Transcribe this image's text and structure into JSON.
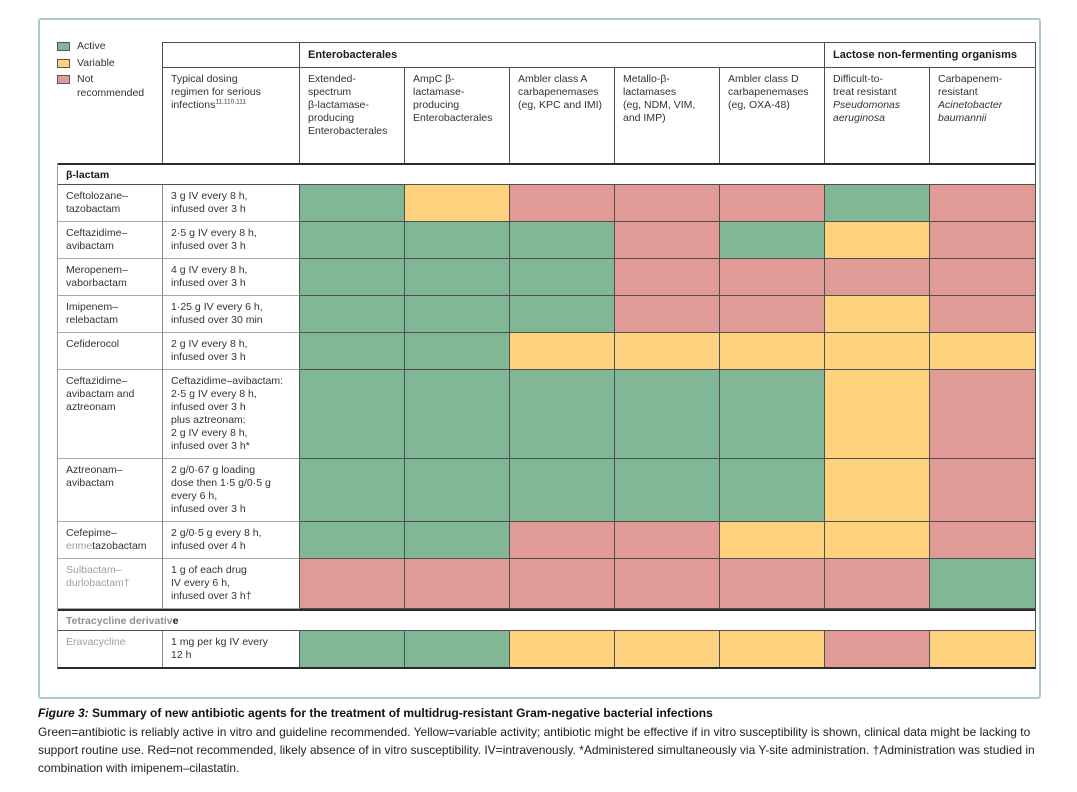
{
  "colors": {
    "active": "#81b797",
    "variable": "#fdd17e",
    "not": "#e19b97",
    "frame": "#a7cec3"
  },
  "legend": {
    "items": [
      {
        "label": "Active",
        "status": "active",
        "color": "#81b797"
      },
      {
        "label": "Variable",
        "status": "variable",
        "color": "#fdd17e"
      },
      {
        "label": "Not\nrecommended",
        "status": "not",
        "color": "#e19b97"
      }
    ]
  },
  "header": {
    "dosing_label": "Typical dosing\nregimen for serious\ninfections",
    "dosing_superscript": "11,110,111",
    "groups": [
      {
        "label": "Enterobacterales"
      },
      {
        "label": "Lactose non-fermenting organisms"
      }
    ],
    "columns": [
      {
        "label": "Extended-\nspectrum\nβ-lactamase-\nproducing\nEnterobacterales"
      },
      {
        "label": "AmpC β-\nlactamase-\nproducing\nEnterobacterales"
      },
      {
        "label": "Ambler class A\ncarbapenemases\n(eg, KPC and IMI)"
      },
      {
        "label": "Metallo-β-\nlactamases\n(eg, NDM, VIM,\nand IMP)"
      },
      {
        "label": "Ambler class D\ncarbapenemases\n(eg, OXA-48)"
      },
      {
        "label": "Difficult-to-\ntreat resistant",
        "italic": "Pseudomonas\naeruginosa"
      },
      {
        "label": "Carbapenem-\nresistant",
        "italic": "Acinetobacter\nbaumannii"
      }
    ]
  },
  "sections": [
    {
      "title": [
        {
          "t": "β-lactam"
        }
      ],
      "rows": [
        {
          "name": [
            {
              "t": "Ceftolozane–\ntazobactam"
            }
          ],
          "dosing": "3 g IV every 8 h,\ninfused over 3 h",
          "cells": [
            "active",
            "variable",
            "not",
            "not",
            "not",
            "active",
            "not"
          ]
        },
        {
          "name": [
            {
              "t": "Ceftazidime–\navibactam"
            }
          ],
          "dosing": "2·5 g IV every 8 h,\ninfused over 3 h",
          "cells": [
            "active",
            "active",
            "active",
            "not",
            "active",
            "variable",
            "not"
          ]
        },
        {
          "name": [
            {
              "t": "Meropenem–\nvaborbactam"
            }
          ],
          "dosing": "4 g IV every 8 h,\ninfused over 3 h",
          "cells": [
            "active",
            "active",
            "active",
            "not",
            "not",
            "not",
            "not"
          ]
        },
        {
          "name": [
            {
              "t": "Imipenem–\nrelebactam"
            }
          ],
          "dosing": "1·25 g IV every 6 h,\ninfused over 30 min",
          "cells": [
            "active",
            "active",
            "active",
            "not",
            "not",
            "variable",
            "not"
          ]
        },
        {
          "name": [
            {
              "t": "Cefiderocol"
            }
          ],
          "dosing": "2 g IV every 8 h,\ninfused over 3 h",
          "cells": [
            "active",
            "active",
            "variable",
            "variable",
            "variable",
            "variable",
            "variable"
          ]
        },
        {
          "name": [
            {
              "t": "Ceftazidime–\navibactam and\naztreonam"
            }
          ],
          "dosing": "Ceftazidime–avibactam:\n2·5 g IV every 8 h,\ninfused over 3 h\nplus aztreonam:\n2 g IV every 8 h,\ninfused over 3 h*",
          "cells": [
            "active",
            "active",
            "active",
            "active",
            "active",
            "variable",
            "not"
          ]
        },
        {
          "name": [
            {
              "t": "Aztreonam–\navibactam"
            }
          ],
          "dosing": "2 g/0·67 g loading\ndose then 1·5 g/0·5 g\nevery 6 h,\ninfused over 3 h",
          "cells": [
            "active",
            "active",
            "active",
            "active",
            "active",
            "variable",
            "not"
          ]
        },
        {
          "name": [
            {
              "t": "Cefepime–\n"
            },
            {
              "t": "enme",
              "gray": true
            },
            {
              "t": "tazobactam"
            }
          ],
          "dosing": "2 g/0·5 g every 8 h,\ninfused over 4 h",
          "cells": [
            "active",
            "active",
            "not",
            "not",
            "variable",
            "variable",
            "not"
          ]
        },
        {
          "name": [
            {
              "t": "Sulbactam–\ndurlobactam†",
              "gray": true
            }
          ],
          "dosing": "1 g of each drug\nIV every 6 h,\ninfused over 3 h†",
          "cells": [
            "not",
            "not",
            "not",
            "not",
            "not",
            "not",
            "active"
          ]
        }
      ]
    },
    {
      "title": [
        {
          "t": "Tetracycline derivativ",
          "gray": true
        },
        {
          "t": "e"
        }
      ],
      "rows": [
        {
          "name": [
            {
              "t": "Eravacycline",
              "gray": true
            }
          ],
          "dosing": "1 mg per kg IV every\n12 h",
          "cells": [
            "active",
            "active",
            "variable",
            "variable",
            "variable",
            "not",
            "variable"
          ]
        }
      ]
    }
  ],
  "caption": {
    "figure_label": "Figure 3:",
    "title": "Summary of new antibiotic agents for the treatment of multidrug-resistant Gram-negative bacterial infections",
    "body": "Green=antibiotic is reliably active in vitro and guideline recommended. Yellow=variable activity; antibiotic might be effective if in vitro susceptibility is shown, clinical data might be lacking to support routine use. Red=not recommended, likely absence of in vitro susceptibility. IV=intravenously. *Administered simultaneously via Y-site administration. †Administration was studied in combination with imipenem–cilastatin."
  }
}
